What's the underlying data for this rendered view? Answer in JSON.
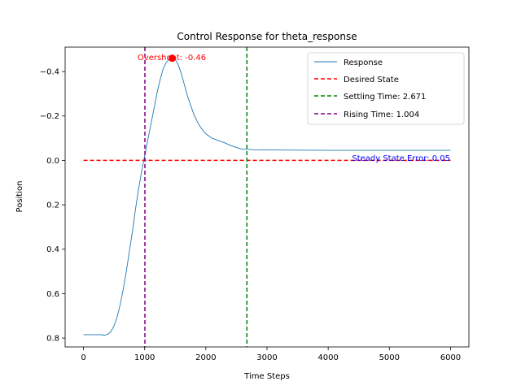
{
  "chart_data": {
    "type": "line",
    "title": "Control Response for theta_response",
    "xlabel": "Time Steps",
    "ylabel": "Position",
    "xlim": [
      -300,
      6300
    ],
    "ylim": [
      0.84,
      -0.51
    ],
    "y_inverted": true,
    "x_ticks": [
      0,
      1000,
      2000,
      3000,
      4000,
      5000,
      6000
    ],
    "x_tick_labels": [
      "0",
      "1000",
      "2000",
      "3000",
      "4000",
      "5000",
      "6000"
    ],
    "y_ticks": [
      -0.4,
      -0.2,
      0.0,
      0.2,
      0.4,
      0.6,
      0.8
    ],
    "y_tick_labels": [
      "−0.4",
      "−0.2",
      "0.0",
      "0.2",
      "0.4",
      "0.6",
      "0.8"
    ],
    "grid": false,
    "legend_position": "top-right",
    "series": [
      {
        "name": "Response",
        "color": "#1f77b4",
        "x": [
          0,
          100,
          200,
          280,
          340,
          400,
          450,
          500,
          550,
          600,
          650,
          700,
          750,
          800,
          850,
          900,
          950,
          1000,
          1050,
          1100,
          1150,
          1200,
          1250,
          1300,
          1350,
          1400,
          1450,
          1500,
          1550,
          1600,
          1650,
          1700,
          1750,
          1800,
          1850,
          1900,
          1950,
          2000,
          2050,
          2100,
          2200,
          2300,
          2400,
          2500,
          2600,
          2671,
          2800,
          3000,
          3500,
          4000,
          5000,
          6000
        ],
        "y": [
          0.785,
          0.785,
          0.785,
          0.785,
          0.787,
          0.783,
          0.77,
          0.745,
          0.705,
          0.65,
          0.58,
          0.5,
          0.41,
          0.32,
          0.22,
          0.13,
          0.05,
          -0.02,
          -0.09,
          -0.16,
          -0.23,
          -0.3,
          -0.36,
          -0.41,
          -0.44,
          -0.455,
          -0.46,
          -0.455,
          -0.43,
          -0.39,
          -0.34,
          -0.29,
          -0.25,
          -0.21,
          -0.18,
          -0.155,
          -0.135,
          -0.12,
          -0.11,
          -0.1,
          -0.09,
          -0.08,
          -0.068,
          -0.058,
          -0.05,
          -0.05,
          -0.048,
          -0.047,
          -0.046,
          -0.045,
          -0.045,
          -0.045
        ]
      },
      {
        "name": "Desired State",
        "color": "#ff0000",
        "style": "dashed",
        "x": [
          0,
          6000
        ],
        "y": [
          0.0,
          0.0
        ]
      }
    ],
    "vlines": [
      {
        "name": "Settling Time: 2.671",
        "x": 2671,
        "color": "#008000"
      },
      {
        "name": "Rising Time: 1.004",
        "x": 1004,
        "color": "#800080"
      }
    ],
    "overshoot_point": {
      "x": 1450,
      "y": -0.46,
      "color": "#ff0000"
    },
    "annotations": {
      "overshoot": "Overshoot: -0.46",
      "steady_state": "Steady State Error: 0.05"
    },
    "colors": {
      "overshoot_text": "#ff0000",
      "steady_state_text": "#0000ff"
    }
  }
}
